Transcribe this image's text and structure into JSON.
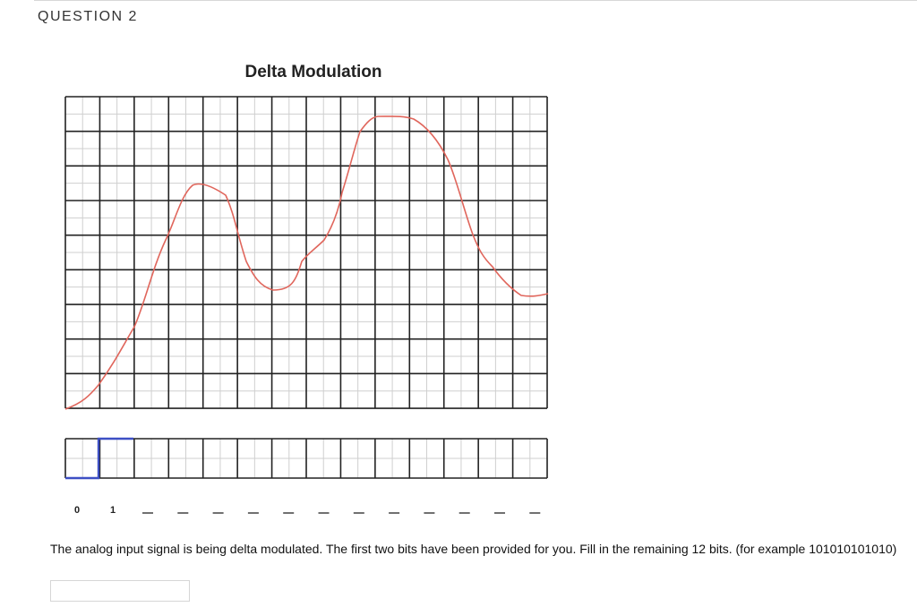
{
  "question": {
    "header": "QUESTION 2",
    "figure_title": "Delta Modulation",
    "given_bits": [
      "0",
      "1"
    ],
    "remaining_bit_slots": 12,
    "prompt_text": "The analog input signal is being delta modulated.  The first two bits have been provided for you.  Fill in the remaining 12 bits.  (for example 101010101010)",
    "answer_value": "",
    "answer_placeholder": ""
  },
  "colors": {
    "signal": "#e0665c",
    "staircase": "#3d4fc4",
    "grid_major": "#222222",
    "grid_minor": "#cfcfcf"
  }
}
